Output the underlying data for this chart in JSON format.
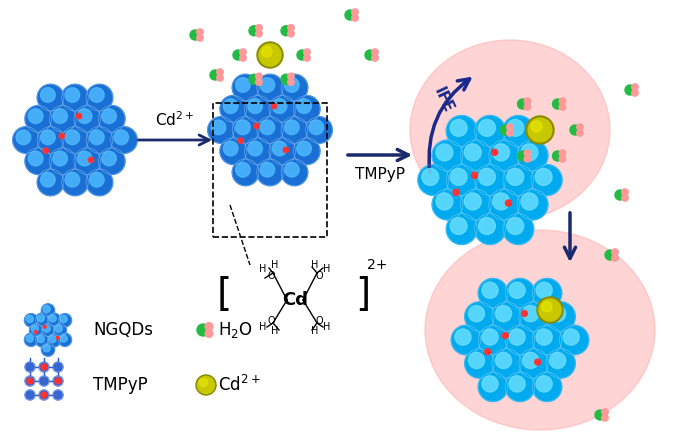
{
  "bg_color": "#ffffff",
  "ngqd_color_outer": "#1a6fd4",
  "ngqd_color_inner": "#4db8ff",
  "ngqd_edge": "#aaddff",
  "cd_color": "#c8c800",
  "cd_outline": "#8a8a00",
  "water_green": "#22bb44",
  "water_pink": "#ff9999",
  "red_dot": "#ff3333",
  "arrow_color": "#1a2a6c",
  "ife_label": "IFE",
  "tmpyp_label": "TMPyP",
  "pink_glow": "#ffaaaa",
  "legend_ngqds": "NGQDs",
  "legend_h2o": "H$_2$O",
  "legend_tmpyp": "TMPyP",
  "legend_cd": "Cd$^{2+}$"
}
